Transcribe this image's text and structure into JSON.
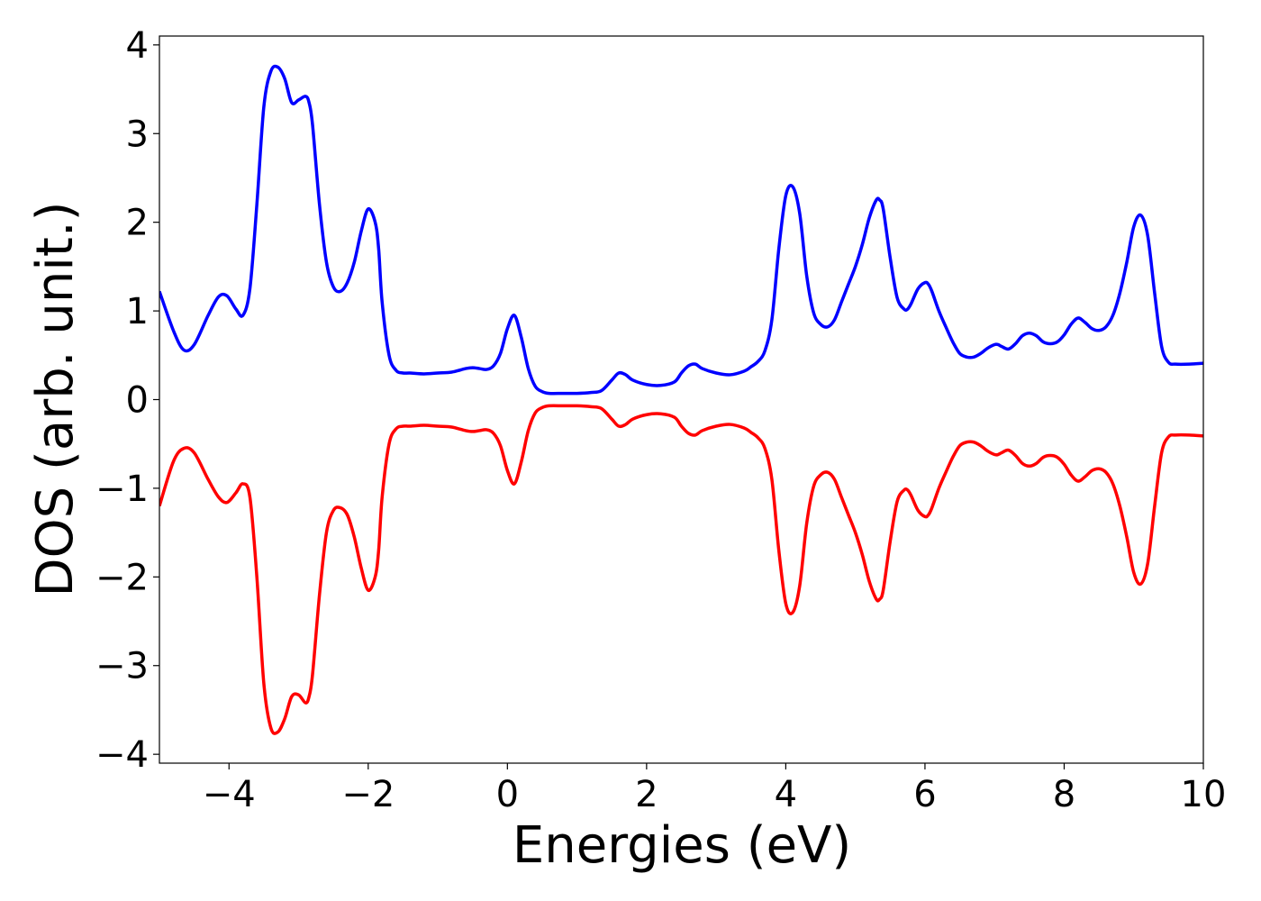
{
  "chart_data": {
    "type": "line",
    "title": "",
    "xlabel": "Energies (eV)",
    "ylabel": "DOS (arb. unit.)",
    "xlim": [
      -5,
      10
    ],
    "ylim": [
      -4.1,
      4.1
    ],
    "x_ticks": [
      -4,
      -2,
      0,
      2,
      4,
      6,
      8,
      10
    ],
    "x_tick_labels": [
      "−4",
      "−2",
      "0",
      "2",
      "4",
      "6",
      "8",
      "10"
    ],
    "y_ticks": [
      -4,
      -3,
      -2,
      -1,
      0,
      1,
      2,
      3,
      4
    ],
    "y_tick_labels": [
      "−4",
      "−3",
      "−2",
      "−1",
      "0",
      "1",
      "2",
      "3",
      "4"
    ],
    "grid": false,
    "series": [
      {
        "color": "#0000ff",
        "x": [
          -5.0,
          -4.8,
          -4.65,
          -4.5,
          -4.3,
          -4.15,
          -4.03,
          -3.9,
          -3.8,
          -3.7,
          -3.6,
          -3.5,
          -3.4,
          -3.3,
          -3.2,
          -3.1,
          -3.0,
          -2.9,
          -2.85,
          -2.8,
          -2.7,
          -2.6,
          -2.5,
          -2.4,
          -2.3,
          -2.2,
          -2.1,
          -2.0,
          -1.9,
          -1.85,
          -1.8,
          -1.7,
          -1.6,
          -1.5,
          -1.4,
          -1.2,
          -1.0,
          -0.8,
          -0.6,
          -0.5,
          -0.4,
          -0.3,
          -0.2,
          -0.1,
          0.0,
          0.1,
          0.2,
          0.3,
          0.4,
          0.5,
          0.6,
          0.8,
          1.0,
          1.2,
          1.35,
          1.5,
          1.6,
          1.7,
          1.8,
          2.0,
          2.2,
          2.4,
          2.5,
          2.6,
          2.7,
          2.8,
          3.0,
          3.2,
          3.4,
          3.5,
          3.6,
          3.7,
          3.8,
          3.9,
          4.0,
          4.1,
          4.2,
          4.3,
          4.4,
          4.5,
          4.6,
          4.7,
          4.8,
          4.9,
          5.0,
          5.1,
          5.2,
          5.3,
          5.35,
          5.4,
          5.5,
          5.6,
          5.7,
          5.75,
          5.8,
          5.9,
          6.0,
          6.05,
          6.1,
          6.2,
          6.3,
          6.4,
          6.5,
          6.6,
          6.7,
          6.8,
          6.9,
          7.0,
          7.05,
          7.1,
          7.2,
          7.3,
          7.4,
          7.5,
          7.6,
          7.7,
          7.8,
          7.9,
          8.0,
          8.1,
          8.2,
          8.3,
          8.4,
          8.5,
          8.6,
          8.7,
          8.8,
          8.9,
          9.0,
          9.1,
          9.2,
          9.3,
          9.4,
          9.5,
          9.6,
          9.8,
          10.0
        ],
        "y": [
          1.22,
          0.78,
          0.56,
          0.62,
          0.95,
          1.16,
          1.17,
          1.02,
          0.95,
          1.25,
          2.2,
          3.3,
          3.7,
          3.75,
          3.62,
          3.35,
          3.38,
          3.42,
          3.35,
          3.1,
          2.2,
          1.55,
          1.27,
          1.22,
          1.32,
          1.55,
          1.9,
          2.15,
          2.0,
          1.7,
          1.1,
          0.5,
          0.33,
          0.3,
          0.3,
          0.29,
          0.3,
          0.31,
          0.35,
          0.36,
          0.35,
          0.34,
          0.38,
          0.52,
          0.8,
          0.95,
          0.7,
          0.35,
          0.15,
          0.09,
          0.07,
          0.07,
          0.07,
          0.08,
          0.1,
          0.22,
          0.3,
          0.28,
          0.22,
          0.17,
          0.16,
          0.2,
          0.3,
          0.38,
          0.4,
          0.35,
          0.3,
          0.28,
          0.32,
          0.37,
          0.43,
          0.55,
          0.9,
          1.7,
          2.3,
          2.4,
          2.1,
          1.4,
          0.98,
          0.85,
          0.82,
          0.9,
          1.1,
          1.3,
          1.5,
          1.75,
          2.05,
          2.25,
          2.25,
          2.15,
          1.6,
          1.15,
          1.02,
          1.02,
          1.08,
          1.25,
          1.32,
          1.3,
          1.22,
          1.0,
          0.82,
          0.65,
          0.52,
          0.48,
          0.48,
          0.52,
          0.58,
          0.62,
          0.62,
          0.6,
          0.57,
          0.63,
          0.72,
          0.75,
          0.72,
          0.65,
          0.63,
          0.65,
          0.73,
          0.85,
          0.92,
          0.87,
          0.8,
          0.78,
          0.82,
          0.95,
          1.2,
          1.55,
          1.95,
          2.08,
          1.85,
          1.2,
          0.6,
          0.42,
          0.4,
          0.4,
          0.41
        ]
      },
      {
        "color": "#ff0000",
        "x": [
          -5.0,
          -4.8,
          -4.65,
          -4.5,
          -4.3,
          -4.15,
          -4.03,
          -3.9,
          -3.8,
          -3.7,
          -3.6,
          -3.5,
          -3.4,
          -3.3,
          -3.2,
          -3.1,
          -3.0,
          -2.9,
          -2.85,
          -2.8,
          -2.7,
          -2.6,
          -2.5,
          -2.4,
          -2.3,
          -2.2,
          -2.1,
          -2.0,
          -1.9,
          -1.85,
          -1.8,
          -1.7,
          -1.6,
          -1.5,
          -1.4,
          -1.2,
          -1.0,
          -0.8,
          -0.6,
          -0.5,
          -0.4,
          -0.3,
          -0.2,
          -0.1,
          0.0,
          0.1,
          0.2,
          0.3,
          0.4,
          0.5,
          0.6,
          0.8,
          1.0,
          1.2,
          1.35,
          1.5,
          1.6,
          1.7,
          1.8,
          2.0,
          2.2,
          2.4,
          2.5,
          2.6,
          2.7,
          2.8,
          3.0,
          3.2,
          3.4,
          3.5,
          3.6,
          3.7,
          3.8,
          3.9,
          4.0,
          4.1,
          4.2,
          4.3,
          4.4,
          4.5,
          4.6,
          4.7,
          4.8,
          4.9,
          5.0,
          5.1,
          5.2,
          5.3,
          5.35,
          5.4,
          5.5,
          5.6,
          5.7,
          5.75,
          5.8,
          5.9,
          6.0,
          6.05,
          6.1,
          6.2,
          6.3,
          6.4,
          6.5,
          6.6,
          6.7,
          6.8,
          6.9,
          7.0,
          7.05,
          7.1,
          7.2,
          7.3,
          7.4,
          7.5,
          7.6,
          7.7,
          7.8,
          7.9,
          8.0,
          8.1,
          8.2,
          8.3,
          8.4,
          8.5,
          8.6,
          8.7,
          8.8,
          8.9,
          9.0,
          9.1,
          9.2,
          9.3,
          9.4,
          9.5,
          9.6,
          9.8,
          10.0
        ],
        "y": [
          -1.2,
          -0.7,
          -0.55,
          -0.6,
          -0.9,
          -1.1,
          -1.16,
          -1.05,
          -0.95,
          -1.1,
          -2.0,
          -3.2,
          -3.7,
          -3.75,
          -3.6,
          -3.35,
          -3.33,
          -3.42,
          -3.35,
          -3.1,
          -2.2,
          -1.5,
          -1.25,
          -1.22,
          -1.3,
          -1.55,
          -1.9,
          -2.15,
          -2.0,
          -1.7,
          -1.1,
          -0.5,
          -0.33,
          -0.3,
          -0.3,
          -0.29,
          -0.3,
          -0.31,
          -0.35,
          -0.36,
          -0.35,
          -0.34,
          -0.38,
          -0.52,
          -0.8,
          -0.95,
          -0.7,
          -0.35,
          -0.15,
          -0.09,
          -0.07,
          -0.07,
          -0.07,
          -0.08,
          -0.1,
          -0.22,
          -0.3,
          -0.28,
          -0.22,
          -0.17,
          -0.16,
          -0.2,
          -0.3,
          -0.38,
          -0.4,
          -0.35,
          -0.3,
          -0.28,
          -0.32,
          -0.37,
          -0.43,
          -0.55,
          -0.9,
          -1.7,
          -2.3,
          -2.4,
          -2.1,
          -1.4,
          -0.98,
          -0.85,
          -0.82,
          -0.9,
          -1.1,
          -1.3,
          -1.5,
          -1.75,
          -2.05,
          -2.25,
          -2.25,
          -2.15,
          -1.6,
          -1.15,
          -1.02,
          -1.02,
          -1.08,
          -1.25,
          -1.32,
          -1.3,
          -1.22,
          -1.0,
          -0.82,
          -0.65,
          -0.52,
          -0.48,
          -0.48,
          -0.52,
          -0.58,
          -0.62,
          -0.62,
          -0.6,
          -0.57,
          -0.63,
          -0.72,
          -0.75,
          -0.72,
          -0.65,
          -0.63,
          -0.65,
          -0.73,
          -0.85,
          -0.92,
          -0.87,
          -0.8,
          -0.78,
          -0.82,
          -0.95,
          -1.2,
          -1.55,
          -1.95,
          -2.08,
          -1.85,
          -1.2,
          -0.6,
          -0.42,
          -0.4,
          -0.4,
          -0.41
        ]
      }
    ]
  }
}
